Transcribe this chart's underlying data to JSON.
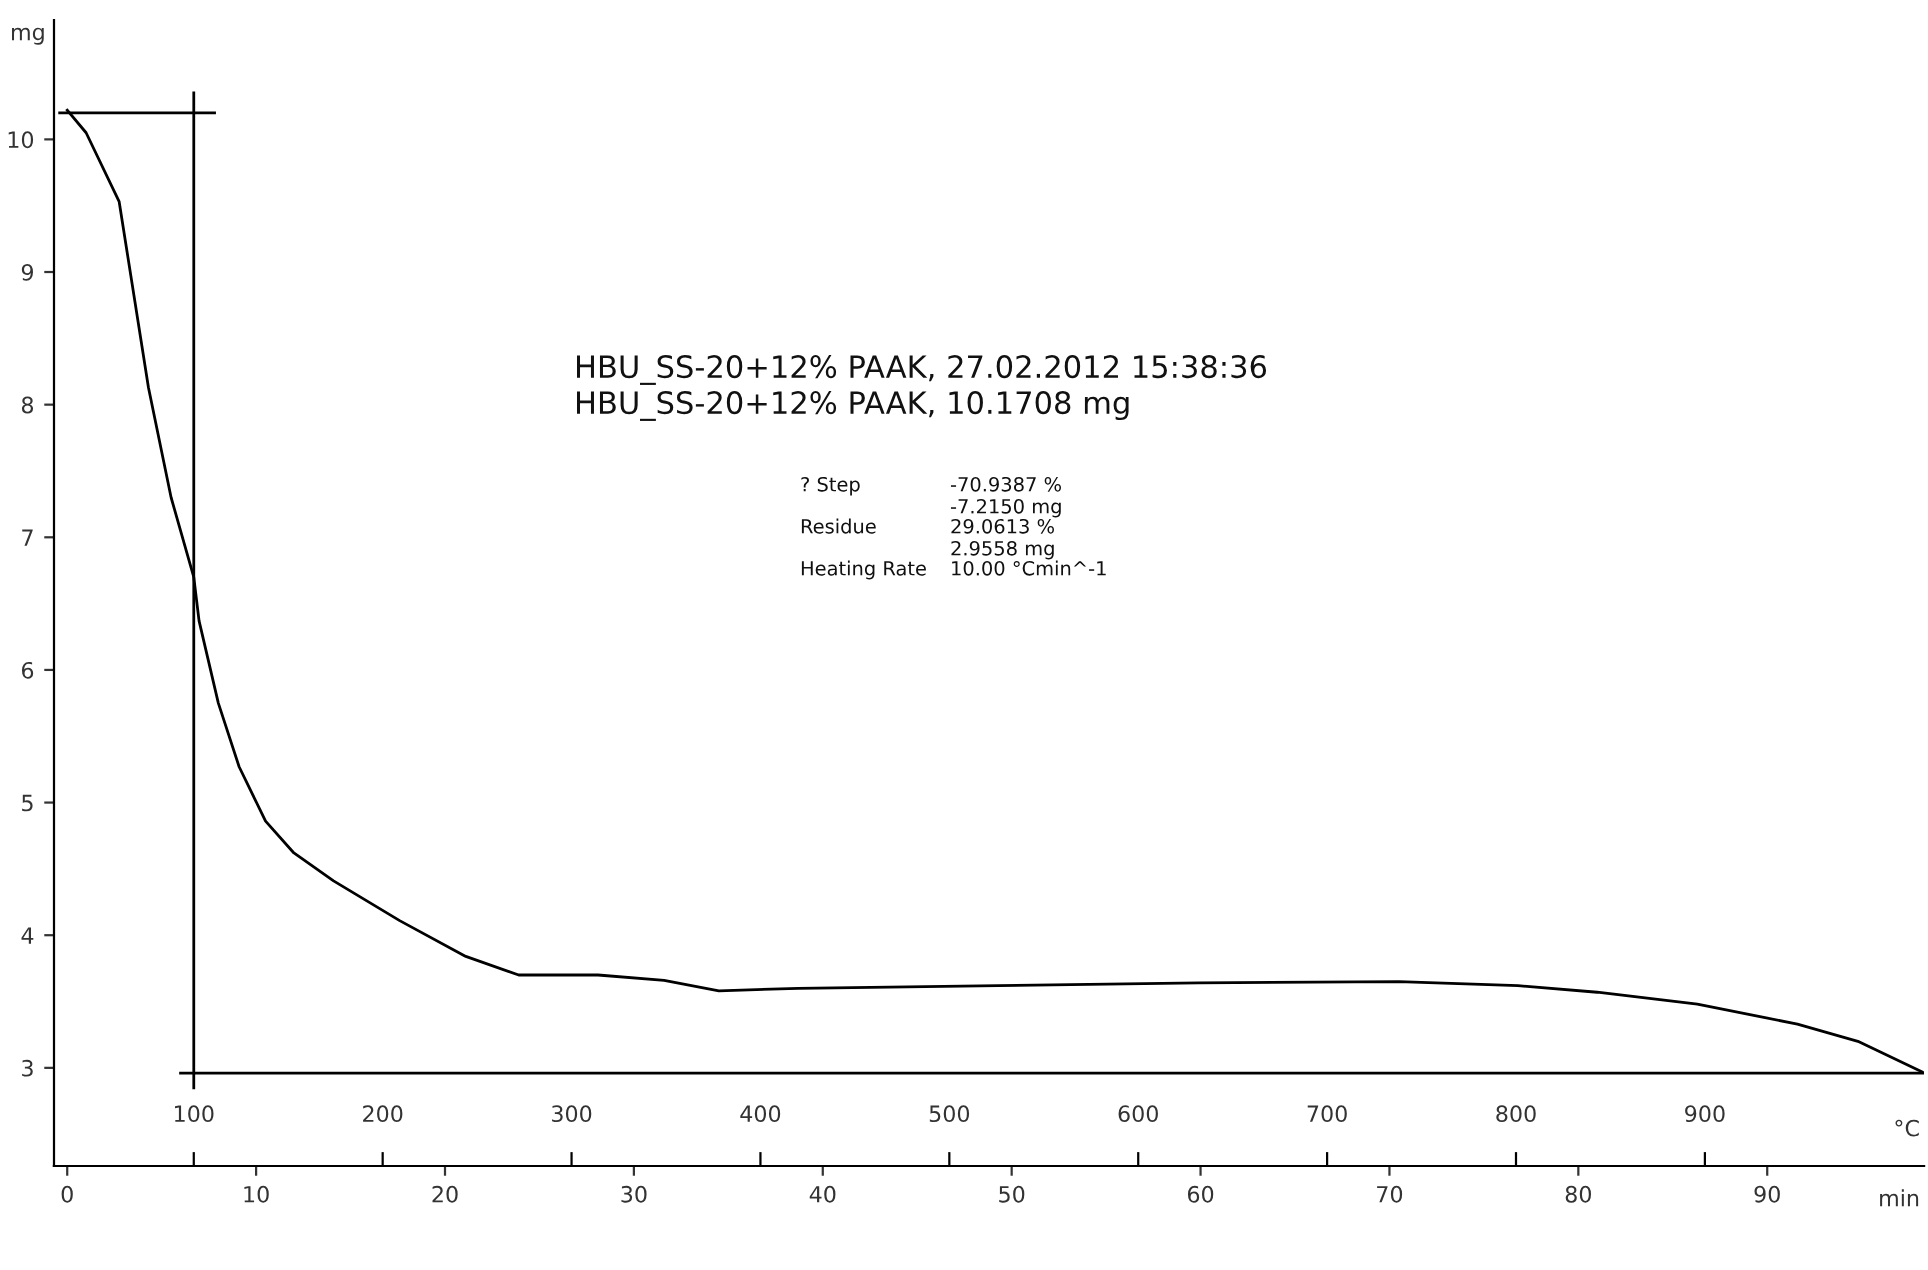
{
  "chart_data": {
    "type": "line",
    "ylabel": "mg",
    "xlabel": "min",
    "x2label": "°C",
    "series": [
      {
        "color": "#000000",
        "x": [
          0,
          1.0,
          2.75,
          4.3,
          5.5,
          6.7,
          6.98,
          8.0,
          9.1,
          10.5,
          12.0,
          14.1,
          17.6,
          21.1,
          23.9,
          28.1,
          31.6,
          34.5,
          38.7,
          49.3,
          59.9,
          70.5,
          76.8,
          81.0,
          86.3,
          91.6,
          94.8,
          98.2
        ],
        "values": [
          10.22,
          10.05,
          9.53,
          8.13,
          7.3,
          6.7,
          6.37,
          5.75,
          5.27,
          4.86,
          4.62,
          4.41,
          4.11,
          3.84,
          3.7,
          3.7,
          3.66,
          3.58,
          3.6,
          3.62,
          3.64,
          3.65,
          3.62,
          3.57,
          3.48,
          3.33,
          3.2,
          2.97
        ]
      },
      {
        "color": "#000000",
        "x": [
          -0.4,
          7.8
        ],
        "values": [
          10.2,
          10.2
        ]
      },
      {
        "color": "#000000",
        "x": [
          6.7,
          6.7
        ],
        "values": [
          10.35,
          2.85
        ]
      },
      {
        "color": "#000000",
        "x": [
          6.0,
          98.3
        ],
        "values": [
          2.96,
          2.96
        ]
      }
    ],
    "xlim": [
      -0.7,
      98.3
    ],
    "xticks": [
      0,
      10,
      20,
      30,
      40,
      50,
      60,
      70,
      80,
      90
    ],
    "x2lim": [
      26,
      1016
    ],
    "x2ticks": [
      100,
      200,
      300,
      400,
      500,
      600,
      700,
      800,
      900
    ],
    "ylim": [
      2.26,
      10.9
    ],
    "yticks": [
      3,
      4,
      5,
      6,
      7,
      8,
      9,
      10
    ],
    "grid": false,
    "legend": false,
    "annotations": [
      "HBU_SS-20+12% PAAK, 27.02.2012 15:38:36",
      "HBU_SS-20+12% PAAK, 10.1708 mg",
      "? Step",
      "-70.9387 %",
      "-7.2150 mg",
      "Residue",
      "29.0613 %",
      "2.9558 mg",
      "Heating Rate",
      "10.00 °Cmin^-1"
    ]
  }
}
